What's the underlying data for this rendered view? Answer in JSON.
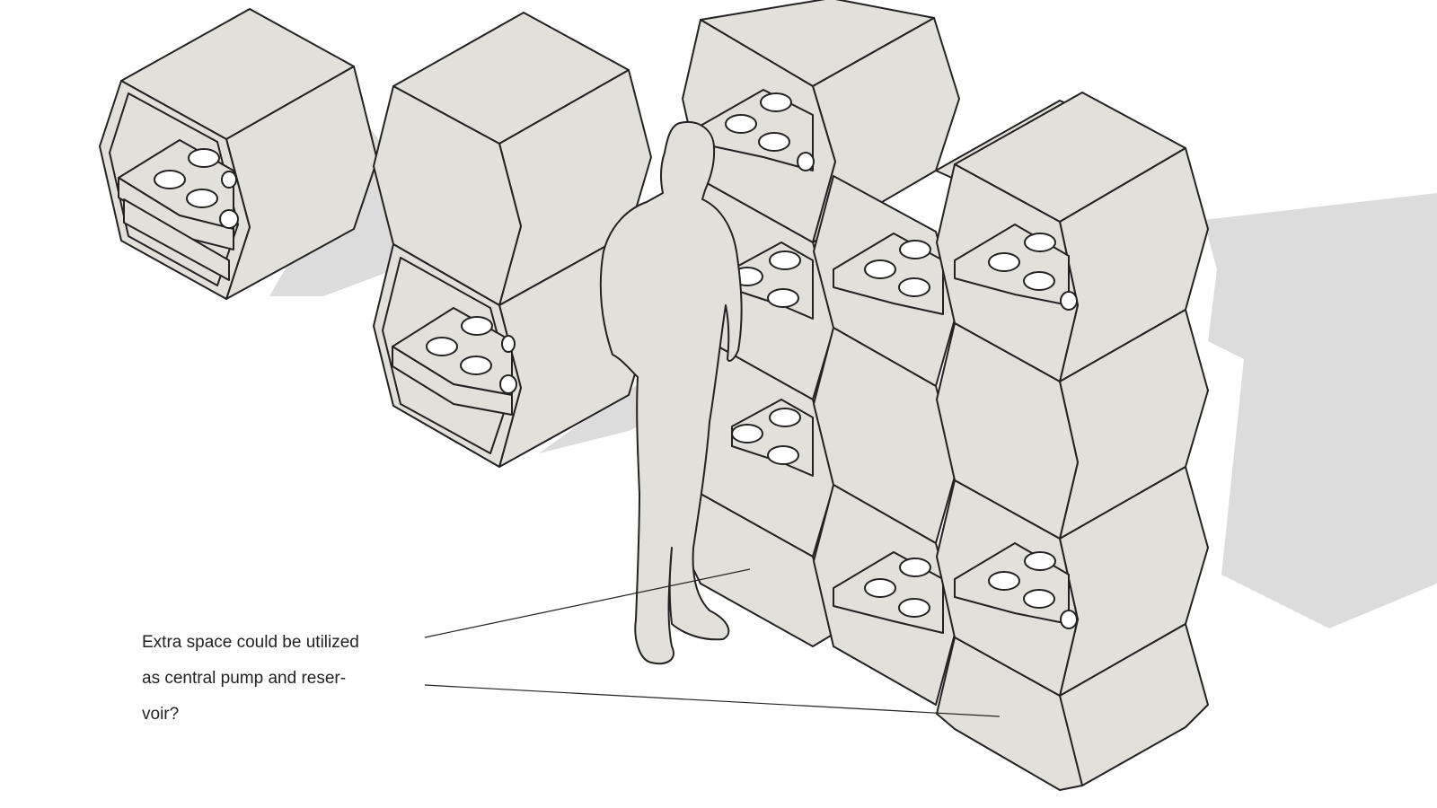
{
  "annotation": {
    "lines": [
      "Extra space could be utilized",
      "as central pump and reser-",
      "voir?"
    ]
  },
  "colors": {
    "panel_fill": "#e2e0da",
    "shadow": "#dcdcdc",
    "stroke": "#222222",
    "background": "#ffffff"
  },
  "icons": {
    "figure": "human-silhouette-icon",
    "module": "hexagonal-planter-module-icon"
  }
}
